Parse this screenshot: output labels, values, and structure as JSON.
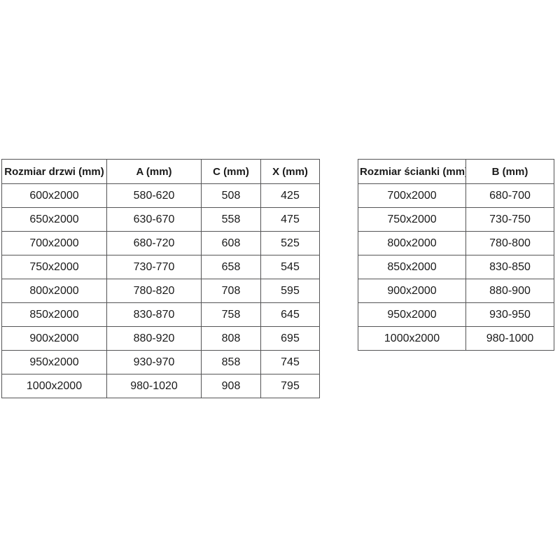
{
  "page": {
    "background_color": "#ffffff",
    "text_color": "#1a1a1a",
    "border_color": "#555556"
  },
  "chart_data": [
    {
      "type": "table",
      "name": "door-dimensions-table",
      "columns": [
        "Rozmiar drzwi (mm)",
        "A (mm)",
        "C (mm)",
        "X (mm)"
      ],
      "rows": [
        [
          "600x2000",
          "580-620",
          "508",
          "425"
        ],
        [
          "650x2000",
          "630-670",
          "558",
          "475"
        ],
        [
          "700x2000",
          "680-720",
          "608",
          "525"
        ],
        [
          "750x2000",
          "730-770",
          "658",
          "545"
        ],
        [
          "800x2000",
          "780-820",
          "708",
          "595"
        ],
        [
          "850x2000",
          "830-870",
          "758",
          "645"
        ],
        [
          "900x2000",
          "880-920",
          "808",
          "695"
        ],
        [
          "950x2000",
          "930-970",
          "858",
          "745"
        ],
        [
          "1000x2000",
          "980-1020",
          "908",
          "795"
        ]
      ]
    },
    {
      "type": "table",
      "name": "wall-panel-dimensions-table",
      "columns": [
        "Rozmiar ścianki (mm)",
        "B (mm)"
      ],
      "rows": [
        [
          "700x2000",
          "680-700"
        ],
        [
          "750x2000",
          "730-750"
        ],
        [
          "800x2000",
          "780-800"
        ],
        [
          "850x2000",
          "830-850"
        ],
        [
          "900x2000",
          "880-900"
        ],
        [
          "950x2000",
          "930-950"
        ],
        [
          "1000x2000",
          "980-1000"
        ]
      ]
    }
  ]
}
